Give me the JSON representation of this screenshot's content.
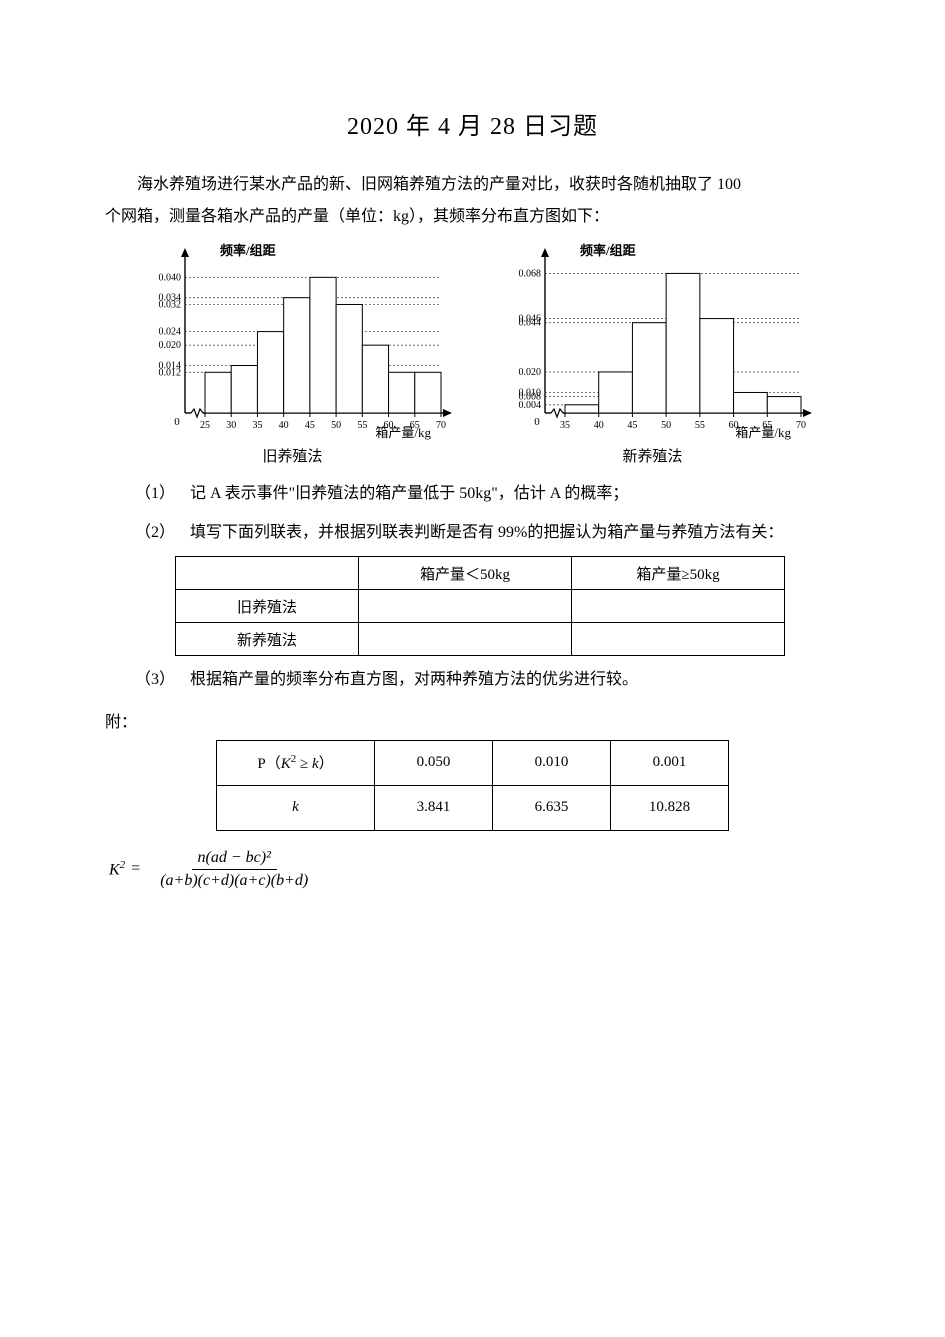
{
  "title": "2020 年 4 月 28 日习题",
  "intro1": "海水养殖场进行某水产品的新、旧网箱养殖方法的产量对比，收获时各随机抽取了  100",
  "intro2": "个网箱，测量各箱水产品的产量（单位：kg），其频率分布直方图如下：",
  "chart_old": {
    "ylabel": "频率/组距",
    "xlabel": "箱产量/kg",
    "caption": "旧养殖法",
    "bins_start": 25,
    "bin_width": 5,
    "heights": [
      0.012,
      0.014,
      0.024,
      0.034,
      0.04,
      0.032,
      0.02,
      0.012,
      0.012
    ],
    "xticks": [
      25,
      30,
      35,
      40,
      45,
      50,
      55,
      60,
      65,
      70
    ],
    "yticks": [
      0.012,
      0.014,
      0.02,
      0.024,
      0.032,
      0.034,
      0.04
    ],
    "axis_color": "#000000",
    "bar_fill": "#ffffff",
    "bar_stroke": "#000000",
    "guide_color": "#555555"
  },
  "chart_new": {
    "ylabel": "频率/组距",
    "xlabel": "箱产量/kg",
    "caption": "新养殖法",
    "bins_start": 35,
    "bin_width": 5,
    "heights": [
      0.004,
      0.02,
      0.044,
      0.068,
      0.046,
      0.01,
      0.008
    ],
    "xticks": [
      35,
      40,
      45,
      50,
      55,
      60,
      65,
      70
    ],
    "yticks": [
      0.004,
      0.008,
      0.01,
      0.02,
      0.044,
      0.046,
      0.068
    ],
    "axis_color": "#000000",
    "bar_fill": "#ffffff",
    "bar_stroke": "#000000",
    "guide_color": "#555555"
  },
  "q1_num": "（1）",
  "q1_text": "记 A 表示事件\"旧养殖法的箱产量低于 50kg\"，估计 A 的概率；",
  "q2_num": "（2）",
  "q2_text": "填写下面列联表，并根据列联表判断是否有 99%的把握认为箱产量与养殖方法有关：",
  "table1": {
    "h1": "箱产量＜50kg",
    "h2": "箱产量≥50kg",
    "r1": "旧养殖法",
    "r2": "新养殖法"
  },
  "q3_num": "（3）",
  "q3_text": "根据箱产量的频率分布直方图，对两种养殖方法的优劣进行较。",
  "attach": "附：",
  "table2": {
    "h": "P（K² ≥ k）",
    "k": "k",
    "p": [
      "0.050",
      "0.010",
      "0.001"
    ],
    "v": [
      "3.841",
      "6.635",
      "10.828"
    ]
  },
  "formula": {
    "lhs": "K",
    "eq": "=",
    "num": "n(ad − bc)²",
    "den": "(a+b)(c+d)(a+c)(b+d)"
  }
}
